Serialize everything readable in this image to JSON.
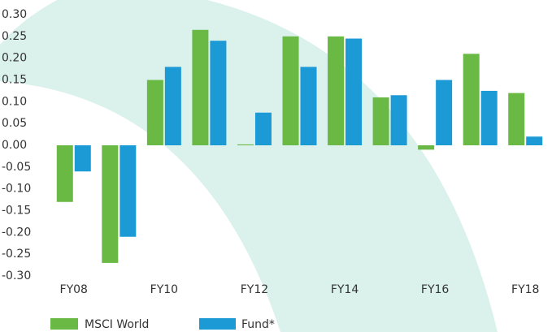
{
  "chart_data": {
    "type": "bar",
    "categories": [
      "FY08",
      null,
      "FY10",
      null,
      "FY12",
      null,
      "FY14",
      null,
      "FY16",
      null,
      "FY18"
    ],
    "series": [
      {
        "name": "MSCI World",
        "color": "#6ab945",
        "values": [
          -0.13,
          -0.27,
          0.15,
          0.265,
          0.002,
          0.25,
          0.25,
          0.11,
          -0.01,
          0.21,
          0.12
        ]
      },
      {
        "name": "Fund*",
        "color": "#1b9ad6",
        "values": [
          -0.06,
          -0.21,
          0.18,
          0.24,
          0.075,
          0.18,
          0.245,
          0.115,
          0.15,
          0.125,
          0.02
        ]
      }
    ],
    "ylim": [
      -0.3,
      0.3
    ],
    "yticks": [
      {
        "value": 0.3,
        "label": "0.30"
      },
      0.25,
      {
        "value": 0.2,
        "label": "0.20"
      },
      0.15,
      {
        "value": 0.1,
        "label": "0.10"
      },
      0.05,
      {
        "value": 0,
        "label": "0.00"
      },
      -0.05,
      {
        "value": -0.1,
        "label": "-0.10"
      },
      -0.15,
      {
        "value": -0.2,
        "label": "-0.20"
      },
      -0.25,
      {
        "value": -0.3,
        "label": "-0.30"
      }
    ],
    "grid": false,
    "legend": "bottom"
  }
}
